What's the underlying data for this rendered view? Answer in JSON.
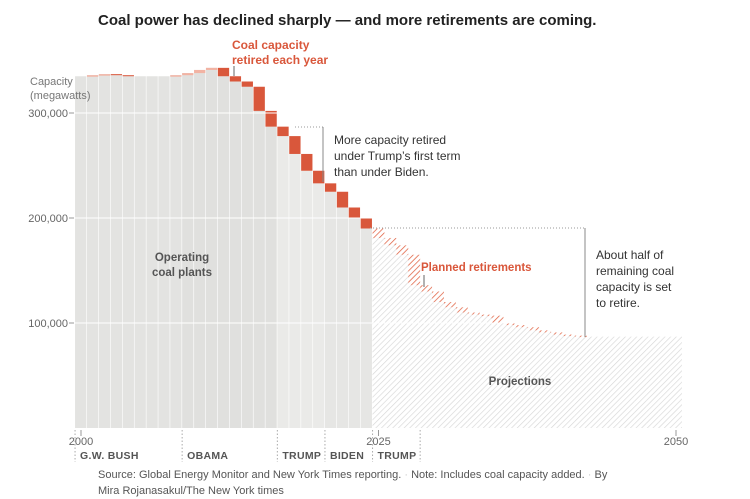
{
  "chart_data": {
    "type": "bar",
    "title": "Coal power has declined sharply — and more retirements are coming.",
    "ylabel": [
      "Capacity",
      "(megawatts)"
    ],
    "ylim": [
      0,
      410000
    ],
    "xlim": [
      2000,
      2050
    ],
    "yticks": [
      {
        "v": 100000,
        "label": "100,000"
      },
      {
        "v": 200000,
        "label": "200,000"
      },
      {
        "v": 300000,
        "label": "300,000"
      }
    ],
    "xticks": [
      {
        "v": 2000,
        "label": "2000"
      },
      {
        "v": 2025,
        "label": "2025"
      },
      {
        "v": 2050,
        "label": "2050"
      }
    ],
    "historical": {
      "years": [
        2000,
        2001,
        2002,
        2003,
        2004,
        2005,
        2006,
        2007,
        2008,
        2009,
        2010,
        2011,
        2012,
        2013,
        2014,
        2015,
        2016,
        2017,
        2018,
        2019,
        2020,
        2021,
        2022,
        2023,
        2024
      ],
      "capacity": [
        335000,
        336000,
        337000,
        336000,
        335000,
        335000,
        335000,
        335000,
        336000,
        338000,
        341000,
        343000,
        335000,
        330000,
        325000,
        302000,
        287000,
        278000,
        261000,
        245000,
        233000,
        225000,
        210000,
        200000,
        190000
      ]
    },
    "projected": {
      "years": [
        2025,
        2026,
        2027,
        2028,
        2029,
        2030,
        2031,
        2032,
        2033,
        2034,
        2035,
        2036,
        2037,
        2038,
        2039,
        2040,
        2041,
        2042,
        2043,
        2044,
        2045,
        2046,
        2047,
        2048,
        2049,
        2050
      ],
      "capacity": [
        181000,
        174000,
        165000,
        136000,
        130000,
        120000,
        115000,
        110000,
        108000,
        107000,
        100000,
        98000,
        96000,
        93000,
        91000,
        89000,
        88000,
        87000,
        87000,
        87000,
        87000,
        87000,
        87000,
        87000,
        87000,
        87000
      ]
    },
    "eras": [
      {
        "label": "G.W. BUSH",
        "start": 2000,
        "end": 2008
      },
      {
        "label": "OBAMA",
        "start": 2009,
        "end": 2016
      },
      {
        "label": "TRUMP",
        "start": 2017,
        "end": 2020
      },
      {
        "label": "BIDEN",
        "start": 2021,
        "end": 2024
      },
      {
        "label": "TRUMP",
        "start": 2025,
        "end": 2028
      }
    ],
    "annotations": {
      "retired": [
        "Coal capacity",
        "retired each year"
      ],
      "trump": [
        "More capacity retired",
        "under Trump’s first term",
        "than under Biden."
      ],
      "half": [
        "About half of",
        "remaining coal",
        "capacity is set",
        "to retire."
      ],
      "planned": "Planned retirements",
      "operating": [
        "Operating",
        "coal plants"
      ],
      "projections": "Projections"
    },
    "colors": {
      "retired": "#d9573b",
      "added": "#f2b3a3",
      "bar": "#e6e6e4",
      "hatch": "#d8d8d8"
    }
  },
  "footer": {
    "source": "Source: Global Energy Monitor and New York Times reporting.",
    "note": "Note: Includes coal capacity added.",
    "by": "By",
    "credit": "Mira Rojanasakul/The New York times"
  }
}
